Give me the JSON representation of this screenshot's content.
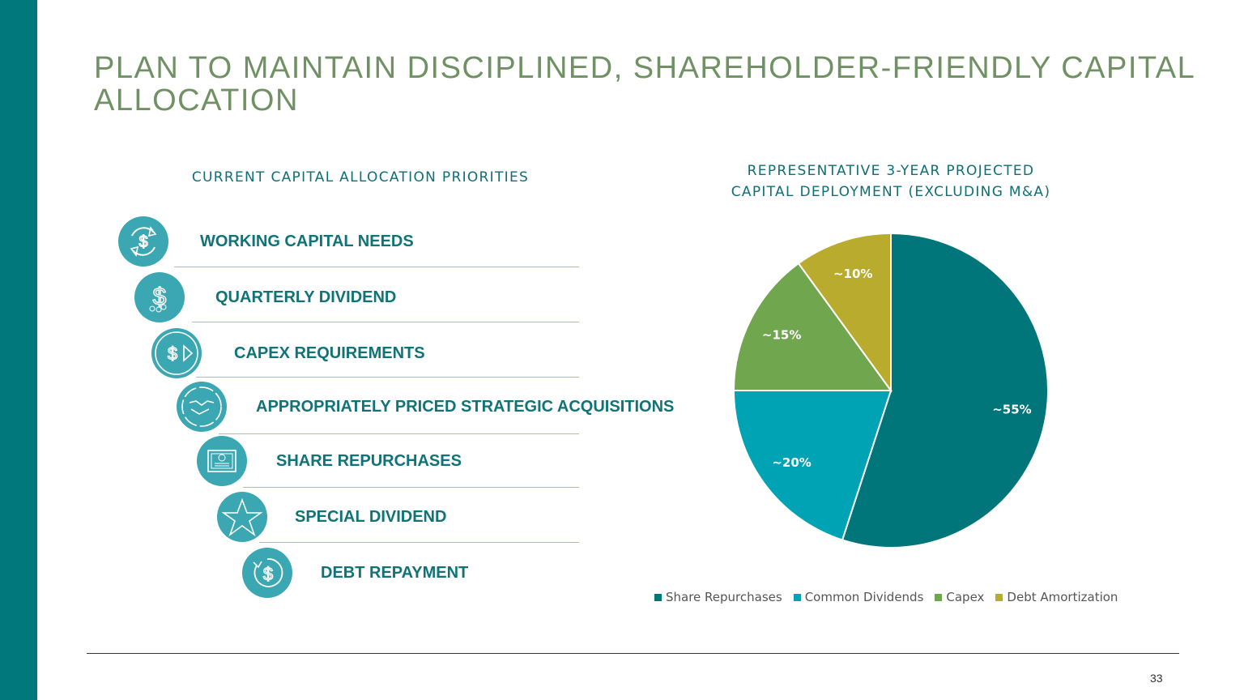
{
  "title": "PLAN TO MAINTAIN DISCIPLINED, SHAREHOLDER-FRIENDLY CAPITAL ALLOCATION",
  "left_heading": "CURRENT CAPITAL ALLOCATION PRIORITIES",
  "priorities": [
    {
      "label": "WORKING CAPITAL NEEDS",
      "icon": "cycle-dollar-icon"
    },
    {
      "label": "QUARTERLY DIVIDEND",
      "icon": "dollar-coins-icon"
    },
    {
      "label": "CAPEX REQUIREMENTS",
      "icon": "dollar-play-icon"
    },
    {
      "label": "APPROPRIATELY PRICED STRATEGIC ACQUISITIONS",
      "icon": "handshake-icon"
    },
    {
      "label": "SHARE REPURCHASES",
      "icon": "stock-certificate-icon"
    },
    {
      "label": "SPECIAL DIVIDEND",
      "icon": "star-icon"
    },
    {
      "label": "DEBT REPAYMENT",
      "icon": "refresh-dollar-icon"
    }
  ],
  "chart_data": {
    "type": "pie",
    "title_line1": "REPRESENTATIVE 3-YEAR PROJECTED",
    "title_line2": "CAPITAL DEPLOYMENT (EXCLUDING M&A)",
    "categories": [
      "Share Repurchases",
      "Common Dividends",
      "Capex",
      "Debt Amortization"
    ],
    "values": [
      55,
      20,
      15,
      10
    ],
    "labels": [
      "~55%",
      "~20%",
      "~15%",
      "~10%"
    ],
    "colors": [
      "#00767b",
      "#00a3b3",
      "#70a64d",
      "#b9ab2e"
    ],
    "start": "12 o'clock",
    "direction": "clockwise",
    "legend_position": "bottom"
  },
  "page_number": "33",
  "colors": {
    "sidebar": "#00787c",
    "title": "#6f9163",
    "icon": "#3aa7b2",
    "item_text": "#0f7377"
  }
}
